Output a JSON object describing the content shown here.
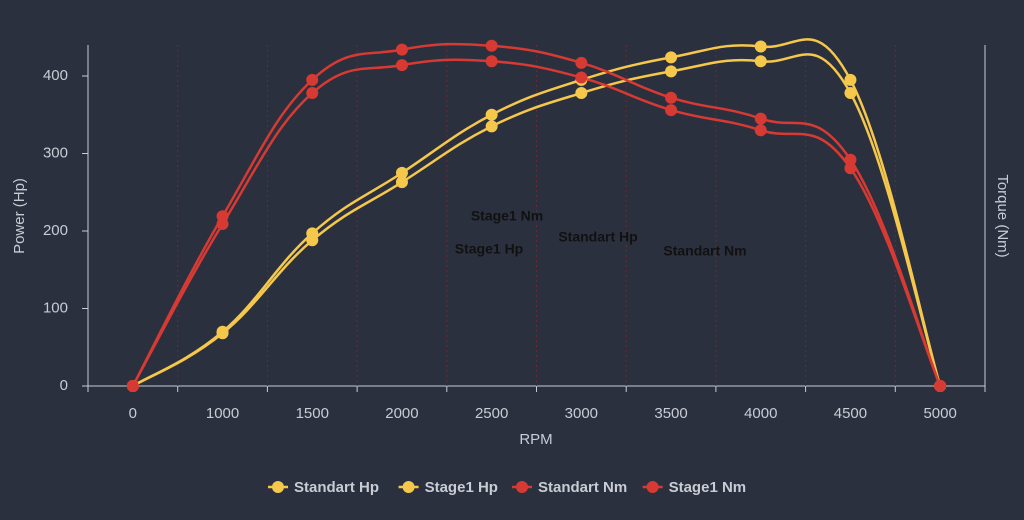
{
  "chart_data": {
    "type": "line",
    "x_label": "RPM",
    "y_label": "Power (Hp)",
    "y2_label": "Torque (Nm)",
    "categories": [
      "0",
      "1000",
      "1500",
      "2000",
      "2500",
      "3000",
      "3500",
      "4000",
      "4500",
      "5000"
    ],
    "series": [
      {
        "name": "Standart Hp",
        "color": "#f5c84c",
        "values": [
          0,
          68,
          188,
          263,
          335,
          378,
          406,
          419,
          378,
          0
        ]
      },
      {
        "name": "Stage1 Hp",
        "color": "#f5c84c",
        "values": [
          0,
          70,
          197,
          275,
          350,
          395,
          424,
          438,
          395,
          0
        ]
      },
      {
        "name": "Standart Nm",
        "color": "#d63a33",
        "values": [
          0,
          209,
          378,
          414,
          419,
          398,
          356,
          330,
          281,
          0
        ]
      },
      {
        "name": "Stage1 Nm",
        "color": "#d63a33",
        "values": [
          0,
          219,
          395,
          434,
          439,
          417,
          372,
          345,
          292,
          0
        ]
      }
    ],
    "annotations": [
      "Stage1 Nm",
      "Stage1 Hp",
      "Standart Hp",
      "Standart Nm"
    ],
    "ylim": [
      0,
      440
    ],
    "yticks": [
      0,
      100,
      200,
      300,
      400
    ],
    "vertical_grid": true,
    "grid_color": "#6b2a30"
  }
}
